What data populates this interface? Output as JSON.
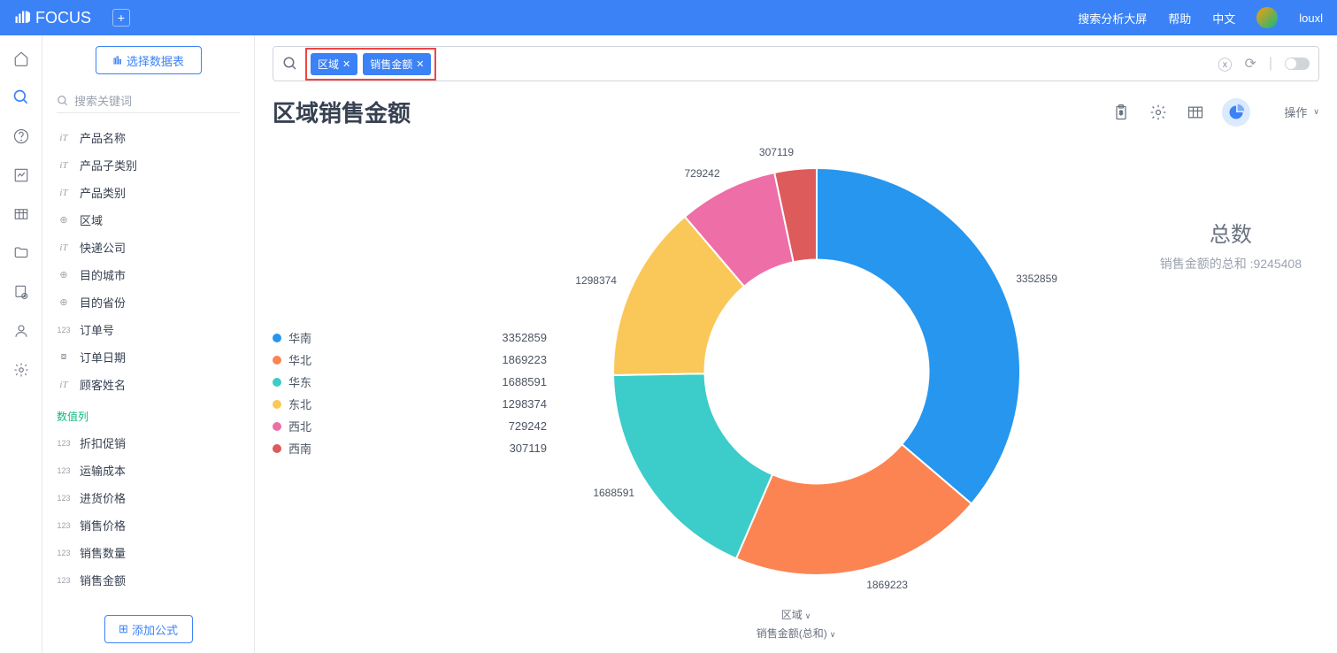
{
  "brand": "FOCUS",
  "top_nav": {
    "item1": "搜索分析大屏",
    "item2": "帮助",
    "item3": "中文",
    "user": "louxl"
  },
  "side_btns": {
    "select_table": "选择数据表",
    "add_formula": "添加公式"
  },
  "search_placeholder": "搜索关键词",
  "fields": {
    "attr": [
      {
        "icon": "iT",
        "label": "产品名称"
      },
      {
        "icon": "iT",
        "label": "产品子类别"
      },
      {
        "icon": "iT",
        "label": "产品类别"
      },
      {
        "icon": "globe",
        "label": "区域"
      },
      {
        "icon": "iT",
        "label": "快递公司"
      },
      {
        "icon": "globe",
        "label": "目的城市"
      },
      {
        "icon": "globe",
        "label": "目的省份"
      },
      {
        "icon": "123",
        "label": "订单号"
      },
      {
        "icon": "cal",
        "label": "订单日期"
      },
      {
        "icon": "iT",
        "label": "顾客姓名"
      }
    ],
    "metric_label": "数值列",
    "metrics": [
      {
        "icon": "123",
        "label": "折扣促销"
      },
      {
        "icon": "123",
        "label": "运输成本"
      },
      {
        "icon": "123",
        "label": "进货价格"
      },
      {
        "icon": "123",
        "label": "销售价格"
      },
      {
        "icon": "123",
        "label": "销售数量"
      },
      {
        "icon": "123",
        "label": "销售金额"
      }
    ]
  },
  "chips": [
    {
      "label": "区域"
    },
    {
      "label": "销售金额"
    }
  ],
  "title": "区域销售金额",
  "op_label": "操作",
  "chart": {
    "type": "donut",
    "series": [
      {
        "label": "华南",
        "value": 3352859,
        "color": "#2696ef",
        "angle": 130.5
      },
      {
        "label": "华北",
        "value": 1869223,
        "color": "#fc8452",
        "angle": 72.8
      },
      {
        "label": "华东",
        "value": 1688591,
        "color": "#3cccc9",
        "angle": 65.7
      },
      {
        "label": "东北",
        "value": 1298374,
        "color": "#fac858",
        "angle": 50.6
      },
      {
        "label": "西北",
        "value": 729242,
        "color": "#ee6ea7",
        "angle": 28.4
      },
      {
        "label": "西南",
        "value": 307119,
        "color": "#de5b5b",
        "angle": 12.0
      }
    ],
    "inner_radius": 0.55,
    "background": "#ffffff"
  },
  "summary": {
    "title": "总数",
    "prefix": "销售金额的总和 :",
    "value": "9245408"
  },
  "axis": {
    "dim": "区域",
    "metric": "销售金额(总和)"
  }
}
